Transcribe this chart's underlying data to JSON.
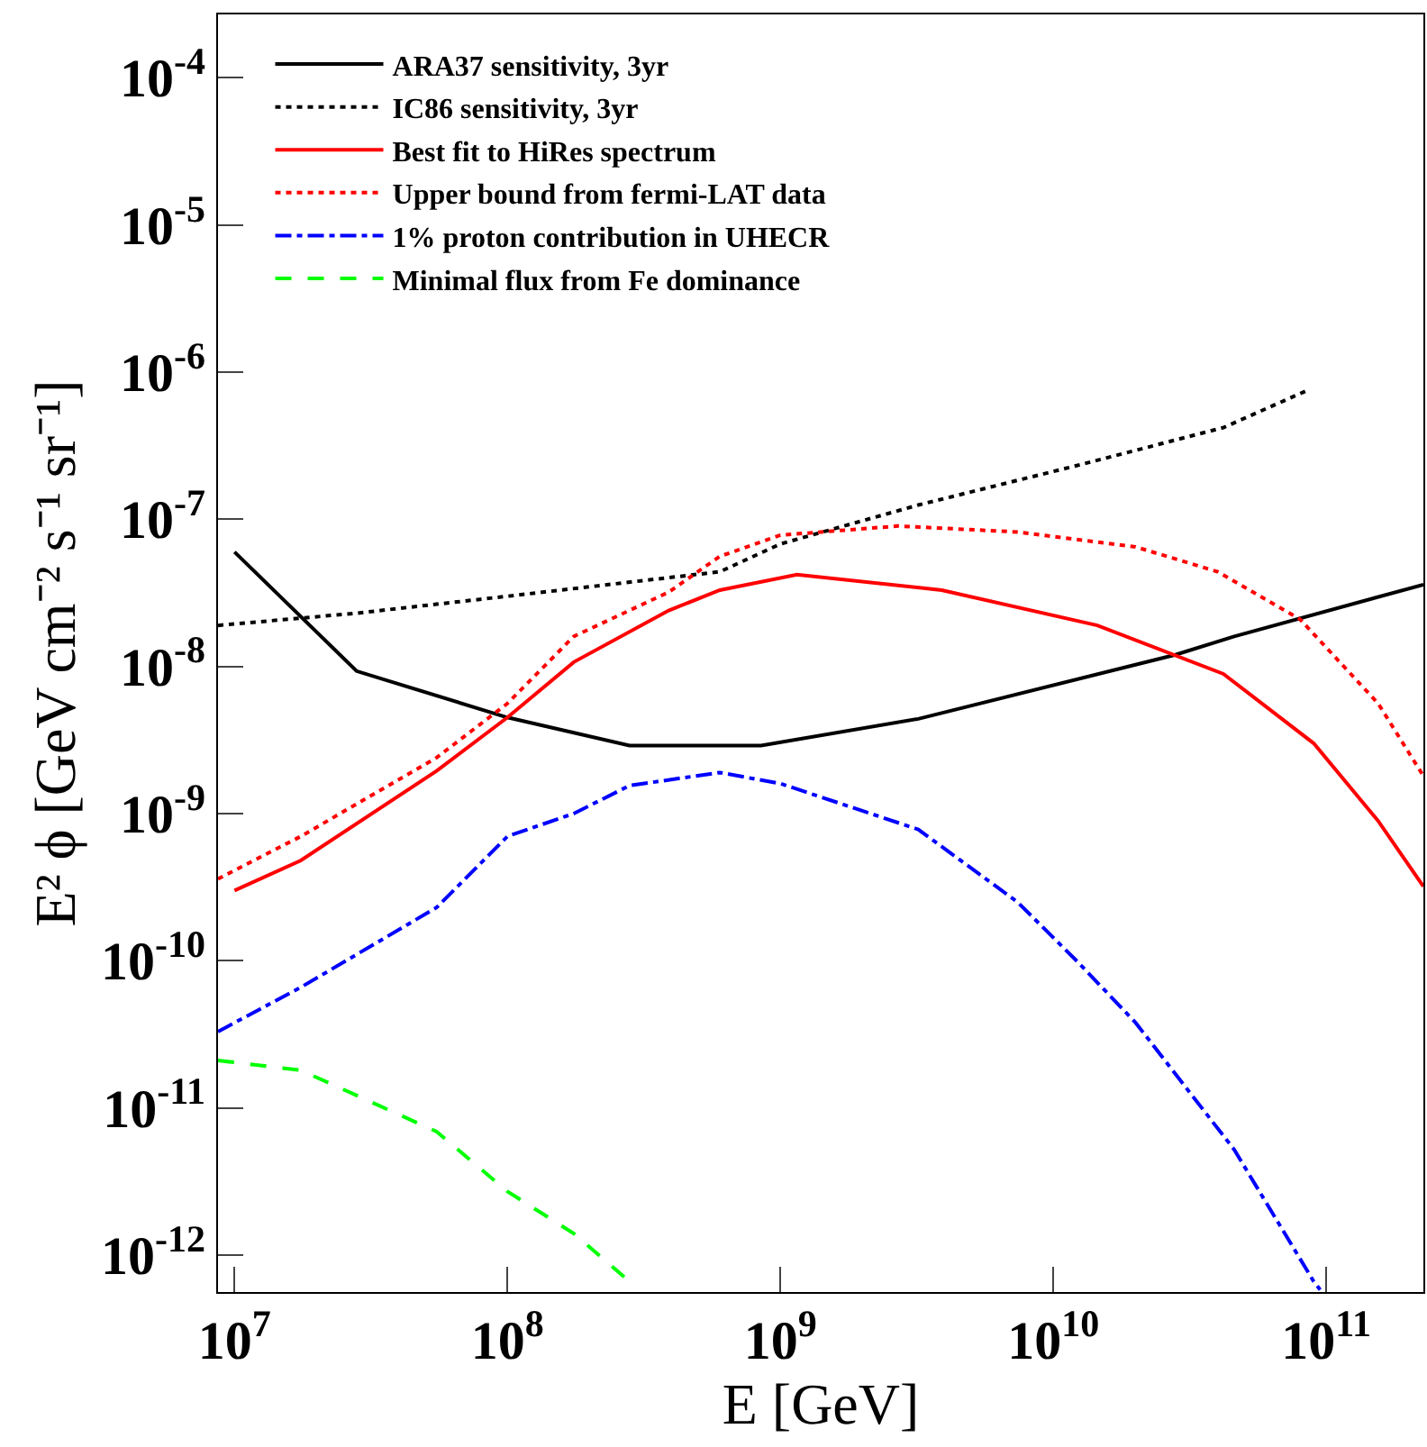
{
  "chart_data": {
    "type": "line",
    "xlabel": "E [GeV]",
    "ylabel": "E² ϕ [GeV cm⁻² s⁻¹ sr⁻¹]",
    "log": "xy",
    "legend": "top left",
    "marker": "none",
    "xlim": [
      8700000.0,
      227000000000.0
    ],
    "ylim": [
      5.6e-13,
      0.00027
    ],
    "xticks": [
      {
        "value": 10000000.0,
        "label": "10$^{7}$"
      },
      {
        "value": 100000000.0,
        "label": "10$^{8}$"
      },
      {
        "value": 1000000000.0,
        "label": "10$^{9}$"
      },
      {
        "value": 10000000000.0,
        "label": "10$^{10}$"
      },
      {
        "value": 100000000000.0,
        "label": "10$^{11}$"
      }
    ],
    "yticks": [
      {
        "value": 1e-12,
        "label": "10$^{-12}$"
      },
      {
        "value": 1e-11,
        "label": "10$^{-11}$"
      },
      {
        "value": 1e-10,
        "label": "10$^{-10}$"
      },
      {
        "value": 1e-09,
        "label": "10$^{-9}$"
      },
      {
        "value": 1e-08,
        "label": "10$^{-8}$"
      },
      {
        "value": 1e-07,
        "label": "10$^{-7}$"
      },
      {
        "value": 1e-06,
        "label": "10$^{-6}$"
      },
      {
        "value": 1e-05,
        "label": "10$^{-5}$"
      },
      {
        "value": 0.0001,
        "label": "10$^{-4}$"
      }
    ],
    "series": [
      {
        "name": "ARA37 sensitivity, 3yr",
        "color": "#000000",
        "line_style": "solid",
        "x": [
          10000000.0,
          28000000.0,
          100000000.0,
          280000000.0,
          850000000.0,
          3200000000.0,
          28000000000.0,
          46000000000.0,
          227000000000.0
        ],
        "values": [
          6e-08,
          9.3e-09,
          4.5e-09,
          2.9e-09,
          2.9e-09,
          4.4e-09,
          1.2e-08,
          1.6e-08,
          3.6e-08
        ]
      },
      {
        "name": "IC86 sensitivity, 3yr",
        "color": "#000000",
        "line_style": "dotted",
        "x": [
          8700000.0,
          28000000.0,
          100000000.0,
          600000000.0,
          1000000000.0,
          3200000000.0,
          12000000000.0,
          42000000000.0,
          85000000000.0
        ],
        "values": [
          1.9e-08,
          2.3e-08,
          3e-08,
          4.4e-08,
          6.8e-08,
          1.25e-07,
          2.3e-07,
          4.2e-07,
          7.5e-07
        ]
      },
      {
        "name": "Best fit to HiRes spectrum",
        "color": "#ff0000",
        "line_style": "solid",
        "x": [
          10000000.0,
          17500000.0,
          55000000.0,
          100000000.0,
          175000000.0,
          390000000.0,
          600000000.0,
          1150000000.0,
          3900000000.0,
          14500000000.0,
          42000000000.0,
          90000000000.0,
          155000000000.0,
          227000000000.0
        ],
        "values": [
          3e-10,
          4.8e-10,
          1.95e-09,
          4.5e-09,
          1.07e-08,
          2.4e-08,
          3.3e-08,
          4.2e-08,
          3.3e-08,
          1.9e-08,
          8.9e-09,
          3e-09,
          8.9e-10,
          3.2e-10
        ]
      },
      {
        "name": "Upper bound from fermi-LAT data",
        "color": "#ff0000",
        "line_style": "dotted",
        "x": [
          8700000.0,
          17500000.0,
          55000000.0,
          100000000.0,
          175000000.0,
          390000000.0,
          600000000.0,
          1000000000.0,
          2700000000.0,
          7400000000.0,
          20000000000.0,
          40000000000.0,
          80000000000.0,
          155000000000.0,
          227000000000.0
        ],
        "values": [
          3.6e-10,
          7e-10,
          2.4e-09,
          5.6e-09,
          1.6e-08,
          3.2e-08,
          5.6e-08,
          7.8e-08,
          9e-08,
          8.2e-08,
          6.5e-08,
          4.4e-08,
          2.1e-08,
          5.6e-09,
          1.8e-09
        ]
      },
      {
        "name": "1% proton contribution in UHECR",
        "color": "#0000ff",
        "line_style": "dashdot",
        "x": [
          8700000.0,
          17500000.0,
          55000000.0,
          100000000.0,
          175000000.0,
          280000000.0,
          600000000.0,
          1000000000.0,
          3200000000.0,
          7400000000.0,
          12300000000.0,
          20000000000.0,
          46000000000.0,
          90000000000.0,
          95000000000.0
        ],
        "values": [
          3.3e-11,
          6.6e-11,
          2.3e-10,
          7e-10,
          1e-09,
          1.55e-09,
          1.9e-09,
          1.6e-09,
          7.8e-10,
          2.5e-10,
          9.8e-11,
          3.8e-11,
          5.2e-12,
          6.6e-13,
          5.8e-13
        ]
      },
      {
        "name": "Minimal flux from Fe dominance",
        "color": "#00ff00",
        "line_style": "dashed",
        "x": [
          8700000.0,
          17500000.0,
          55000000.0,
          100000000.0,
          175000000.0,
          280000000.0
        ],
        "values": [
          2.1e-11,
          1.8e-11,
          6.9e-12,
          2.7e-12,
          1.4e-12,
          6.6e-13
        ]
      }
    ]
  }
}
